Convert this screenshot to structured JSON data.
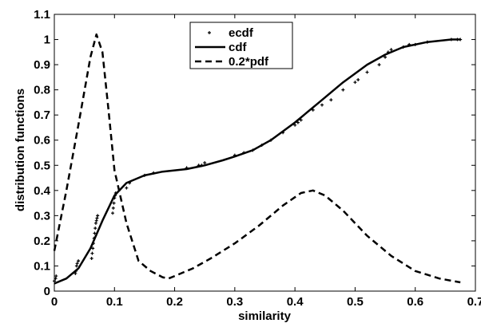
{
  "chart_data": {
    "type": "line",
    "title": "",
    "xlabel": "similarity",
    "ylabel": "distribution functions",
    "xlim": [
      0,
      0.7
    ],
    "ylim": [
      0,
      1.1
    ],
    "xticks": [
      0,
      0.1,
      0.2,
      0.3,
      0.4,
      0.5,
      0.6,
      0.7
    ],
    "xtick_labels": [
      "0",
      "0.1",
      "0.2",
      "0.3",
      "0.4",
      "0.5",
      "0.6",
      "0.7"
    ],
    "yticks": [
      0,
      0.1,
      0.2,
      0.3,
      0.4,
      0.5,
      0.6,
      0.7,
      0.8,
      0.9,
      1,
      1.1
    ],
    "ytick_labels": [
      "0",
      "0.1",
      "0.2",
      "0.3",
      "0.4",
      "0.5",
      "0.6",
      "0.7",
      "0.8",
      "0.9",
      "1",
      "1.1"
    ],
    "grid": false,
    "legend_position": "top-center",
    "series": [
      {
        "name": "ecdf",
        "style": "dots",
        "color": "#000000",
        "x": [
          0.0,
          0.002,
          0.003,
          0.035,
          0.036,
          0.037,
          0.038,
          0.04,
          0.062,
          0.063,
          0.064,
          0.065,
          0.066,
          0.067,
          0.068,
          0.069,
          0.07,
          0.071,
          0.072,
          0.097,
          0.098,
          0.099,
          0.1,
          0.101,
          0.102,
          0.12,
          0.125,
          0.15,
          0.165,
          0.22,
          0.24,
          0.245,
          0.25,
          0.3,
          0.315,
          0.33,
          0.345,
          0.36,
          0.38,
          0.4,
          0.405,
          0.41,
          0.43,
          0.445,
          0.46,
          0.48,
          0.5,
          0.505,
          0.52,
          0.54,
          0.55,
          0.555,
          0.56,
          0.58,
          0.59,
          0.6,
          0.62,
          0.66,
          0.67,
          0.675
        ],
        "y": [
          0.04,
          0.05,
          0.06,
          0.07,
          0.08,
          0.1,
          0.11,
          0.12,
          0.13,
          0.15,
          0.17,
          0.19,
          0.21,
          0.23,
          0.25,
          0.27,
          0.28,
          0.29,
          0.3,
          0.31,
          0.33,
          0.35,
          0.37,
          0.38,
          0.39,
          0.41,
          0.43,
          0.46,
          0.47,
          0.49,
          0.5,
          0.5,
          0.51,
          0.54,
          0.55,
          0.56,
          0.58,
          0.6,
          0.63,
          0.66,
          0.67,
          0.68,
          0.72,
          0.74,
          0.76,
          0.8,
          0.83,
          0.84,
          0.87,
          0.9,
          0.93,
          0.95,
          0.96,
          0.97,
          0.98,
          0.98,
          0.99,
          1.0,
          1.0,
          1.0
        ]
      },
      {
        "name": "cdf",
        "style": "solid",
        "color": "#000000",
        "x": [
          0.0,
          0.02,
          0.04,
          0.06,
          0.08,
          0.1,
          0.12,
          0.15,
          0.18,
          0.22,
          0.25,
          0.28,
          0.3,
          0.33,
          0.36,
          0.4,
          0.44,
          0.48,
          0.52,
          0.55,
          0.58,
          0.62,
          0.66,
          0.675
        ],
        "y": [
          0.03,
          0.05,
          0.09,
          0.17,
          0.28,
          0.38,
          0.43,
          0.46,
          0.475,
          0.485,
          0.5,
          0.52,
          0.535,
          0.56,
          0.6,
          0.67,
          0.75,
          0.83,
          0.9,
          0.94,
          0.97,
          0.99,
          1.0,
          1.0
        ]
      },
      {
        "name": "0.2*pdf",
        "style": "dashed",
        "color": "#000000",
        "x": [
          0.0,
          0.02,
          0.04,
          0.06,
          0.07,
          0.08,
          0.09,
          0.1,
          0.12,
          0.14,
          0.16,
          0.18,
          0.19,
          0.2,
          0.23,
          0.26,
          0.3,
          0.34,
          0.38,
          0.41,
          0.43,
          0.45,
          0.48,
          0.52,
          0.56,
          0.6,
          0.64,
          0.675
        ],
        "y": [
          0.16,
          0.4,
          0.66,
          0.93,
          1.02,
          0.95,
          0.72,
          0.48,
          0.27,
          0.12,
          0.08,
          0.055,
          0.05,
          0.06,
          0.09,
          0.13,
          0.19,
          0.26,
          0.34,
          0.39,
          0.4,
          0.38,
          0.32,
          0.22,
          0.14,
          0.08,
          0.05,
          0.035
        ]
      }
    ]
  }
}
